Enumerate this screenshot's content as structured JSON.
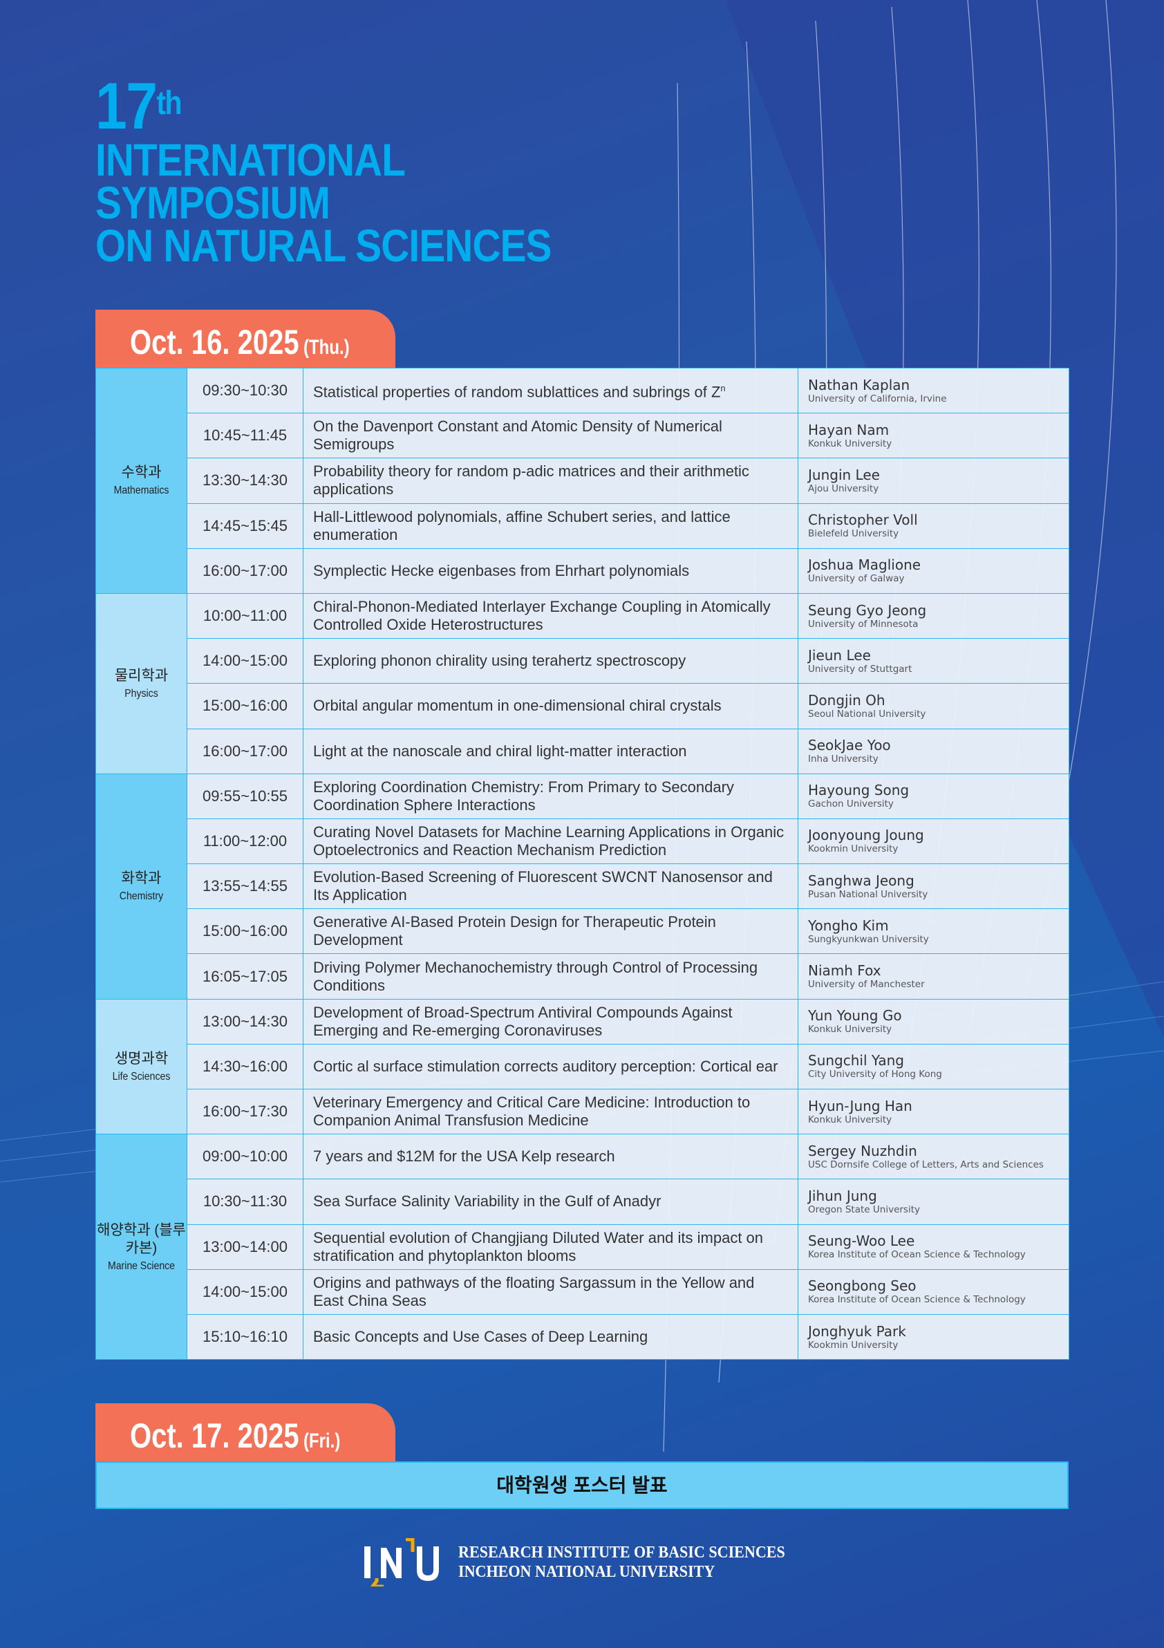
{
  "header": {
    "ordinal": "17",
    "ordinal_suffix": "th",
    "line1": "INTERNATIONAL",
    "line2": "SYMPOSIUM",
    "line3": "ON NATURAL SCIENCES"
  },
  "day1": {
    "date": "Oct. 16. 2025",
    "weekday": "(Thu.)"
  },
  "day2": {
    "date": "Oct. 17. 2025",
    "weekday": "(Fri.)",
    "banner": "대학원생 포스터 발표"
  },
  "colors": {
    "accent": "#00aeef",
    "date_tab": "#f37157",
    "category_dark": "#6dcff6",
    "category_light": "#b1e2fa",
    "border": "#29b6f0"
  },
  "sessions": [
    {
      "ko": "수학과",
      "en": "Mathematics",
      "rows": [
        {
          "time": "09:30~10:30",
          "title": "Statistical properties of random sublattices and subrings of Z",
          "sup": "n",
          "speaker": "Nathan Kaplan",
          "affiliation": "University of California, Irvine"
        },
        {
          "time": "10:45~11:45",
          "title": "On the Davenport Constant and Atomic Density of Numerical Semigroups",
          "speaker": "Hayan Nam",
          "affiliation": "Konkuk University"
        },
        {
          "time": "13:30~14:30",
          "title": "Probability theory for random p-adic matrices and their arithmetic applications",
          "speaker": "Jungin Lee",
          "affiliation": "Ajou University"
        },
        {
          "time": "14:45~15:45",
          "title": "Hall-Littlewood polynomials, affine Schubert series, and lattice enumeration",
          "speaker": "Christopher Voll",
          "affiliation": "Bielefeld University"
        },
        {
          "time": "16:00~17:00",
          "title": "Symplectic Hecke eigenbases from Ehrhart polynomials",
          "speaker": "Joshua Maglione",
          "affiliation": "University of Galway"
        }
      ]
    },
    {
      "ko": "물리학과",
      "en": "Physics",
      "rows": [
        {
          "time": "10:00~11:00",
          "title": "Chiral-Phonon-Mediated Interlayer Exchange Coupling in Atomically Controlled Oxide Heterostructures",
          "speaker": "Seung Gyo Jeong",
          "affiliation": "University of Minnesota"
        },
        {
          "time": "14:00~15:00",
          "title": "Exploring phonon chirality using terahertz spectroscopy",
          "speaker": "Jieun Lee",
          "affiliation": "University of Stuttgart"
        },
        {
          "time": "15:00~16:00",
          "title": "Orbital angular momentum in one-dimensional chiral crystals",
          "speaker": "Dongjin Oh",
          "affiliation": "Seoul National University"
        },
        {
          "time": "16:00~17:00",
          "title": "Light at the nanoscale and chiral light-matter interaction",
          "speaker": "SeokJae Yoo",
          "affiliation": "Inha University"
        }
      ]
    },
    {
      "ko": "화학과",
      "en": "Chemistry",
      "rows": [
        {
          "time": "09:55~10:55",
          "title": "Exploring Coordination Chemistry: From Primary to Secondary Coordination Sphere Interactions",
          "speaker": "Hayoung Song",
          "affiliation": "Gachon University"
        },
        {
          "time": "11:00~12:00",
          "title": "Curating Novel Datasets for Machine Learning Applications in Organic Optoelectronics and Reaction Mechanism Prediction",
          "speaker": "Joonyoung Joung",
          "affiliation": "Kookmin University"
        },
        {
          "time": "13:55~14:55",
          "title": "Evolution-Based Screening of Fluorescent SWCNT Nanosensor and Its Application",
          "speaker": "Sanghwa Jeong",
          "affiliation": "Pusan National University"
        },
        {
          "time": "15:00~16:00",
          "title": "Generative AI-Based Protein Design for Therapeutic Protein Development",
          "speaker": "Yongho Kim",
          "affiliation": "Sungkyunkwan University"
        },
        {
          "time": "16:05~17:05",
          "title": "Driving Polymer Mechanochemistry through Control of Processing Conditions",
          "speaker": "Niamh Fox",
          "affiliation": "University of Manchester"
        }
      ]
    },
    {
      "ko": "생명과학",
      "en": "Life Sciences",
      "rows": [
        {
          "time": "13:00~14:30",
          "title": "Development of Broad-Spectrum Antiviral Compounds Against Emerging and Re-emerging Coronaviruses",
          "speaker": "Yun Young Go",
          "affiliation": "Konkuk University"
        },
        {
          "time": "14:30~16:00",
          "title": "Cortic al surface stimulation corrects auditory perception: Cortical ear",
          "speaker": "Sungchil Yang",
          "affiliation": "City University of Hong Kong"
        },
        {
          "time": "16:00~17:30",
          "title": "Veterinary Emergency and Critical Care Medicine: Introduction to Companion Animal Transfusion Medicine",
          "speaker": "Hyun-Jung Han",
          "affiliation": "Konkuk University"
        }
      ]
    },
    {
      "ko": "해양학과 (블루카본)",
      "en": "Marine Science",
      "rows": [
        {
          "time": "09:00~10:00",
          "title": "7 years and $12M for the USA Kelp research",
          "speaker": "Sergey Nuzhdin",
          "affiliation": "USC Dornsife College of Letters, Arts and Sciences"
        },
        {
          "time": "10:30~11:30",
          "title": "Sea Surface Salinity Variability in the Gulf of Anadyr",
          "speaker": "Jihun Jung",
          "affiliation": "Oregon State University"
        },
        {
          "time": "13:00~14:00",
          "title": "Sequential evolution of Changjiang Diluted Water and its impact on stratification and phytoplankton blooms",
          "speaker": "Seung-Woo Lee",
          "affiliation": "Korea Institute of Ocean Science & Technology"
        },
        {
          "time": "14:00~15:00",
          "title": "Origins and pathways of the floating Sargassum in the Yellow and East China Seas",
          "speaker": "Seongbong Seo",
          "affiliation": "Korea Institute of Ocean Science & Technology"
        },
        {
          "time": "15:10~16:10",
          "title": "Basic Concepts and Use Cases of Deep Learning",
          "speaker": "Jonghyuk Park",
          "affiliation": "Kookmin University"
        }
      ]
    }
  ],
  "footer": {
    "logo_text": "INU",
    "line1": "RESEARCH INSTITUTE OF BASIC SCIENCES",
    "line2": "INCHEON NATIONAL UNIVERSITY"
  }
}
